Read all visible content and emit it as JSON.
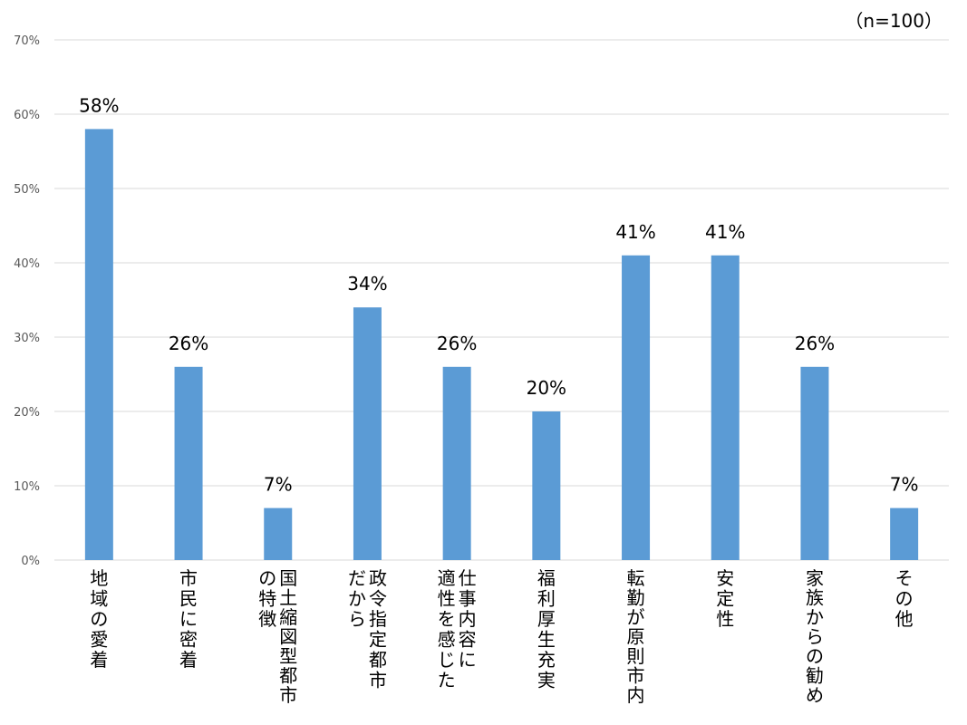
{
  "chart_data": {
    "type": "bar",
    "note": "（n=100）",
    "categories": [
      [
        "地域の愛着"
      ],
      [
        "市民に密着"
      ],
      [
        "国土縮図型都市",
        "の特徴"
      ],
      [
        "政令指定都市",
        "だから"
      ],
      [
        "仕事内容に",
        "適性を感じた"
      ],
      [
        "福利厚生充実"
      ],
      [
        "転勤が原則市内"
      ],
      [
        "安定性"
      ],
      [
        "家族からの勧め"
      ],
      [
        "その他"
      ]
    ],
    "values": [
      58,
      26,
      7,
      34,
      26,
      20,
      41,
      41,
      26,
      7
    ],
    "data_labels": [
      "58%",
      "26%",
      "7%",
      "34%",
      "26%",
      "20%",
      "41%",
      "41%",
      "26%",
      "7%"
    ],
    "y_ticks": [
      "0%",
      "10%",
      "20%",
      "30%",
      "40%",
      "50%",
      "60%",
      "70%"
    ],
    "ylim": [
      0,
      70
    ],
    "grid": true,
    "bar_color": "#5b9bd5",
    "legend": "none"
  }
}
